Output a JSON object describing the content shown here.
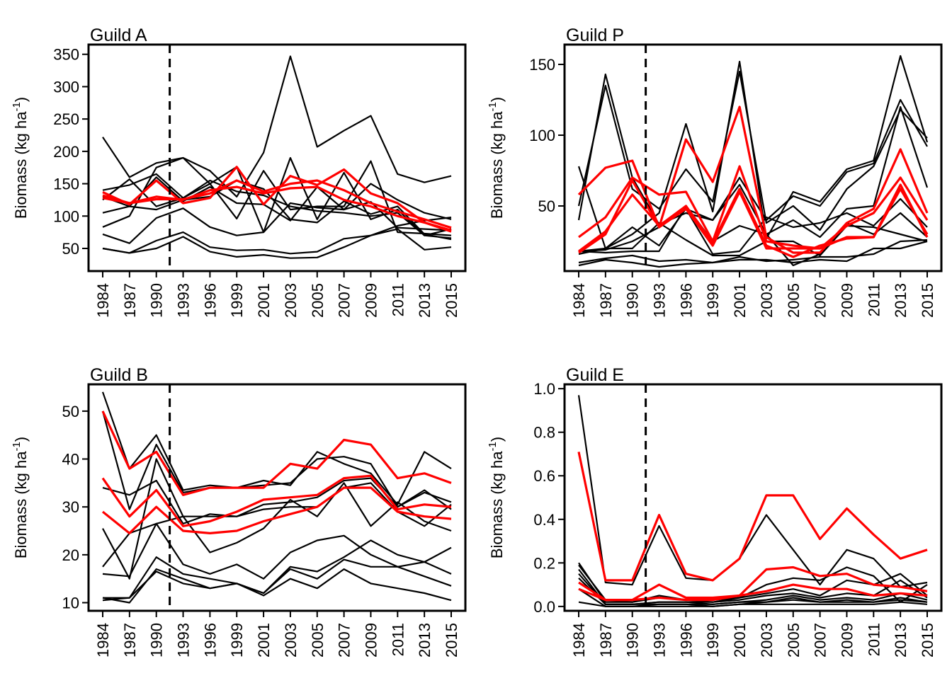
{
  "colors": {
    "reference": "#000000",
    "highlight": "#ff0000",
    "axis": "#000000"
  },
  "chart_data": [
    {
      "type": "line",
      "title": "Guild A",
      "ylabel": "Biomass (kg ha",
      "ylabel_sup": "-1",
      "ylabel_close": ")",
      "ylim": [
        15,
        365
      ],
      "yticks": [
        50,
        100,
        150,
        200,
        250,
        300,
        350
      ],
      "ytick_labels": [
        "50",
        "100",
        "150",
        "200",
        "250",
        "300",
        "350"
      ],
      "x_labels": [
        "1984",
        "1987",
        "1990",
        "1993",
        "1996",
        "1999",
        "2001",
        "2003",
        "2005",
        "2007",
        "2009",
        "2011",
        "2013",
        "2015"
      ],
      "vline_index": 2.5,
      "series": [
        {
          "color": "black",
          "values": [
            222,
            160,
            182,
            190,
            170,
            130,
            198,
            347,
            207,
            232,
            255,
            165,
            152,
            162
          ]
        },
        {
          "color": "black",
          "values": [
            140,
            148,
            165,
            128,
            150,
            176,
            75,
            190,
            95,
            167,
            95,
            110,
            70,
            80
          ]
        },
        {
          "color": "black",
          "values": [
            130,
            115,
            160,
            123,
            145,
            120,
            118,
            93,
            145,
            110,
            150,
            125,
            105,
            95
          ]
        },
        {
          "color": "black",
          "values": [
            125,
            157,
            115,
            128,
            155,
            138,
            132,
            115,
            108,
            105,
            100,
            105,
            70,
            66
          ]
        },
        {
          "color": "black",
          "values": [
            105,
            115,
            110,
            125,
            130,
            155,
            142,
            95,
            90,
            123,
            103,
            115,
            72,
            64
          ]
        },
        {
          "color": "black",
          "values": [
            83,
            100,
            175,
            190,
            150,
            96,
            170,
            110,
            115,
            115,
            185,
            75,
            73,
            70
          ]
        },
        {
          "color": "black",
          "values": [
            72,
            58,
            97,
            112,
            83,
            70,
            75,
            120,
            113,
            110,
            122,
            82,
            80,
            78
          ]
        },
        {
          "color": "black",
          "values": [
            50,
            43,
            62,
            75,
            52,
            47,
            48,
            42,
            45,
            65,
            70,
            85,
            93,
            98
          ]
        },
        {
          "color": "black",
          "values": [
            50,
            43,
            50,
            68,
            45,
            37,
            40,
            35,
            36,
            52,
            70,
            80,
            48,
            52
          ]
        },
        {
          "color": "red",
          "values": [
            137,
            118,
            155,
            120,
            128,
            176,
            118,
            162,
            148,
            172,
            135,
            120,
            90,
            78
          ]
        },
        {
          "color": "red",
          "values": [
            132,
            120,
            126,
            126,
            135,
            155,
            138,
            150,
            155,
            140,
            120,
            107,
            95,
            82
          ]
        },
        {
          "color": "red",
          "values": [
            128,
            120,
            130,
            125,
            140,
            145,
            135,
            143,
            145,
            125,
            115,
            100,
            90,
            76
          ]
        }
      ]
    },
    {
      "type": "line",
      "title": "Guild P",
      "ylabel": "Biomass (kg ha",
      "ylabel_sup": "-1",
      "ylabel_close": ")",
      "ylim": [
        4,
        164
      ],
      "yticks": [
        50,
        100,
        150
      ],
      "ytick_labels": [
        "50",
        "100",
        "150"
      ],
      "x_labels": [
        "1984",
        "1987",
        "1990",
        "1993",
        "1996",
        "1999",
        "2001",
        "2003",
        "2005",
        "2007",
        "2009",
        "2011",
        "2013",
        "2015"
      ],
      "vline_index": 2.5,
      "series": [
        {
          "color": "black",
          "values": [
            78,
            20,
            30,
            45,
            108,
            46,
            152,
            27,
            60,
            53,
            76,
            82,
            156,
            95
          ]
        },
        {
          "color": "black",
          "values": [
            40,
            143,
            70,
            37,
            45,
            40,
            70,
            40,
            57,
            50,
            74,
            80,
            125,
            92
          ]
        },
        {
          "color": "black",
          "values": [
            50,
            135,
            62,
            48,
            76,
            53,
            145,
            38,
            50,
            33,
            62,
            78,
            118,
            98
          ]
        },
        {
          "color": "black",
          "values": [
            18,
            19,
            25,
            35,
            48,
            40,
            65,
            30,
            40,
            28,
            48,
            50,
            120,
            63
          ]
        },
        {
          "color": "black",
          "values": [
            16,
            20,
            35,
            22,
            48,
            16,
            18,
            42,
            35,
            38,
            45,
            36,
            55,
            35
          ]
        },
        {
          "color": "black",
          "values": [
            18,
            17,
            18,
            18,
            50,
            25,
            36,
            30,
            8,
            16,
            38,
            30,
            45,
            28
          ]
        },
        {
          "color": "black",
          "values": [
            18,
            20,
            20,
            38,
            26,
            15,
            15,
            25,
            25,
            15,
            36,
            35,
            30,
            25
          ]
        },
        {
          "color": "black",
          "values": [
            10,
            13,
            15,
            11,
            12,
            10,
            14,
            11,
            12,
            14,
            14,
            16,
            25,
            26
          ]
        },
        {
          "color": "black",
          "values": [
            8,
            12,
            10,
            7,
            9,
            10,
            12,
            12,
            10,
            12,
            11,
            20,
            20,
            25
          ]
        },
        {
          "color": "red",
          "values": [
            58,
            77,
            82,
            35,
            97,
            67,
            120,
            28,
            17,
            17,
            38,
            48,
            90,
            45
          ]
        },
        {
          "color": "red",
          "values": [
            28,
            42,
            70,
            58,
            60,
            25,
            78,
            25,
            22,
            20,
            36,
            45,
            70,
            40
          ]
        },
        {
          "color": "red",
          "values": [
            17,
            30,
            68,
            35,
            48,
            22,
            60,
            20,
            20,
            20,
            28,
            28,
            62,
            30
          ]
        },
        {
          "color": "red",
          "values": [
            18,
            32,
            58,
            36,
            50,
            24,
            62,
            22,
            14,
            22,
            27,
            28,
            65,
            28
          ]
        }
      ]
    },
    {
      "type": "line",
      "title": "Guild B",
      "ylabel": "Biomass (kg ha",
      "ylabel_sup": "-1",
      "ylabel_close": ")",
      "ylim": [
        8.3,
        55.6
      ],
      "yticks": [
        10,
        20,
        30,
        40,
        50
      ],
      "ytick_labels": [
        "10",
        "20",
        "30",
        "40",
        "50"
      ],
      "x_labels": [
        "1984",
        "1987",
        "1990",
        "1993",
        "1996",
        "1999",
        "2001",
        "2003",
        "2005",
        "2007",
        "2009",
        "2011",
        "2013",
        "2015"
      ],
      "vline_index": 2.5,
      "series": [
        {
          "color": "black",
          "values": [
            54,
            38,
            45,
            33.5,
            34.5,
            34,
            35.5,
            34.5,
            41.5,
            39,
            37,
            30.5,
            41.5,
            38
          ]
        },
        {
          "color": "black",
          "values": [
            50,
            29.5,
            43,
            33,
            34,
            34,
            34.5,
            35,
            40,
            40.5,
            39,
            30,
            33.5,
            29.5
          ]
        },
        {
          "color": "black",
          "values": [
            34,
            32.5,
            35.5,
            26.5,
            28.5,
            28,
            30.5,
            31,
            32,
            35.5,
            36,
            30,
            33,
            31
          ]
        },
        {
          "color": "black",
          "values": [
            25.5,
            15,
            40,
            28,
            20.5,
            22.5,
            25.5,
            31.5,
            28,
            35,
            26,
            31,
            27,
            25
          ]
        },
        {
          "color": "black",
          "values": [
            17.5,
            24.5,
            26.5,
            28,
            28,
            28,
            29.5,
            30,
            30,
            34,
            35,
            29,
            26,
            30.5
          ]
        },
        {
          "color": "black",
          "values": [
            16,
            15.5,
            26.5,
            18,
            16,
            18,
            15,
            20.5,
            23,
            24,
            20,
            17.5,
            18.5,
            21.5
          ]
        },
        {
          "color": "black",
          "values": [
            11,
            11,
            19.5,
            16,
            15,
            14,
            12,
            17.5,
            16.5,
            19.5,
            23,
            20,
            18.5,
            16
          ]
        },
        {
          "color": "black",
          "values": [
            11,
            10,
            17,
            15,
            13,
            14,
            12,
            17,
            15,
            19,
            17.5,
            17.5,
            15.5,
            13.5
          ]
        },
        {
          "color": "black",
          "values": [
            10.5,
            11,
            16.5,
            14,
            13,
            14,
            11.5,
            15,
            13,
            17,
            14,
            13,
            12,
            10.5
          ]
        },
        {
          "color": "red",
          "values": [
            50,
            38,
            41.5,
            32.5,
            34,
            34,
            34,
            39,
            38,
            44,
            43,
            36,
            37,
            35
          ]
        },
        {
          "color": "red",
          "values": [
            36,
            28,
            33.5,
            26,
            27,
            29,
            31.5,
            32,
            32.5,
            36,
            36.5,
            29.5,
            30.5,
            30
          ]
        },
        {
          "color": "red",
          "values": [
            29,
            24.5,
            30,
            25,
            24.5,
            25,
            27,
            28.5,
            30,
            34,
            34,
            29,
            28,
            27.5
          ]
        }
      ]
    },
    {
      "type": "line",
      "title": "Guild E",
      "ylabel": "Biomass (kg ha",
      "ylabel_sup": "-1",
      "ylabel_close": ")",
      "ylim": [
        -0.02,
        1.02
      ],
      "yticks": [
        0,
        0.2,
        0.4,
        0.6,
        0.8,
        1.0
      ],
      "ytick_labels": [
        "0.0",
        "0.2",
        "0.4",
        "0.6",
        "0.8",
        "1.0"
      ],
      "x_labels": [
        "1984",
        "1987",
        "1990",
        "1993",
        "1996",
        "1999",
        "2001",
        "2003",
        "2005",
        "2007",
        "2009",
        "2011",
        "2013",
        "2015"
      ],
      "vline_index": 2.5,
      "series": [
        {
          "color": "black",
          "values": [
            0.97,
            0.11,
            0.1,
            0.37,
            0.13,
            0.12,
            0.22,
            0.42,
            0.26,
            0.1,
            0.26,
            0.22,
            0.09,
            0.11
          ]
        },
        {
          "color": "black",
          "values": [
            0.2,
            0.02,
            0.02,
            0.05,
            0.03,
            0.02,
            0.04,
            0.1,
            0.13,
            0.12,
            0.18,
            0.14,
            0.02,
            0.1
          ]
        },
        {
          "color": "black",
          "values": [
            0.19,
            0.03,
            0.02,
            0.04,
            0.03,
            0.03,
            0.04,
            0.06,
            0.08,
            0.05,
            0.12,
            0.1,
            0.15,
            0.05
          ]
        },
        {
          "color": "black",
          "values": [
            0.17,
            0.01,
            0.01,
            0.02,
            0.02,
            0.02,
            0.03,
            0.05,
            0.06,
            0.04,
            0.06,
            0.05,
            0.12,
            0.04
          ]
        },
        {
          "color": "black",
          "values": [
            0.15,
            0.01,
            0.01,
            0.02,
            0.02,
            0.01,
            0.02,
            0.03,
            0.05,
            0.03,
            0.04,
            0.03,
            0.06,
            0.03
          ]
        },
        {
          "color": "black",
          "values": [
            0.13,
            0.01,
            0.01,
            0.01,
            0.01,
            0.01,
            0.02,
            0.02,
            0.04,
            0.02,
            0.03,
            0.02,
            0.04,
            0.02
          ]
        },
        {
          "color": "black",
          "values": [
            0.08,
            0.0,
            0.0,
            0.01,
            0.01,
            0.0,
            0.01,
            0.02,
            0.03,
            0.02,
            0.02,
            0.02,
            0.03,
            0.02
          ]
        },
        {
          "color": "black",
          "values": [
            0.02,
            0.0,
            0.0,
            0.0,
            0.0,
            0.0,
            0.01,
            0.01,
            0.01,
            0.01,
            0.01,
            0.01,
            0.02,
            0.01
          ]
        },
        {
          "color": "red",
          "values": [
            0.71,
            0.12,
            0.12,
            0.42,
            0.15,
            0.12,
            0.22,
            0.51,
            0.51,
            0.31,
            0.45,
            0.33,
            0.22,
            0.26
          ]
        },
        {
          "color": "red",
          "values": [
            0.11,
            0.03,
            0.03,
            0.1,
            0.04,
            0.04,
            0.05,
            0.17,
            0.18,
            0.14,
            0.15,
            0.1,
            0.09,
            0.07
          ]
        },
        {
          "color": "red",
          "values": [
            0.08,
            0.03,
            0.03,
            0.04,
            0.03,
            0.03,
            0.05,
            0.07,
            0.1,
            0.08,
            0.08,
            0.05,
            0.06,
            0.05
          ]
        }
      ]
    }
  ]
}
